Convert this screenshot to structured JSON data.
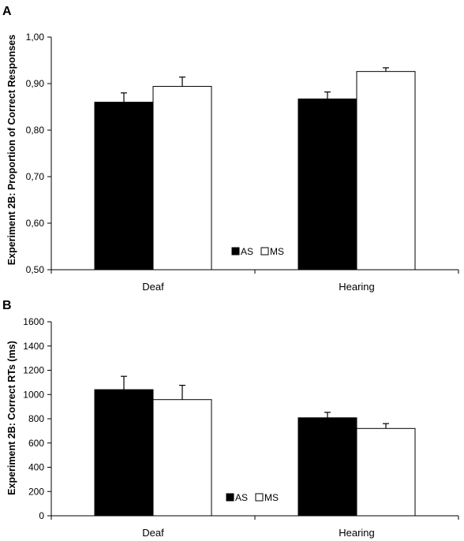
{
  "chart_data": [
    {
      "panel": "A",
      "type": "bar",
      "categories": [
        "Deaf",
        "Hearing"
      ],
      "series": [
        {
          "name": "AS",
          "color": "#000000",
          "values": [
            0.86,
            0.867
          ],
          "errors": [
            0.02,
            0.015
          ]
        },
        {
          "name": "MS",
          "color": "#ffffff",
          "values": [
            0.894,
            0.926
          ],
          "errors": [
            0.02,
            0.008
          ]
        }
      ],
      "ylabel": "Experiment 2B: Proportion of Correct Responses",
      "xlabel": "",
      "ylim": [
        0.5,
        1.0
      ],
      "yticks": [
        0.5,
        0.6,
        0.7,
        0.8,
        0.9,
        1.0
      ],
      "ytick_labels": [
        "0,50",
        "0,60",
        "0,70",
        "0,80",
        "0,90",
        "1,00"
      ],
      "legend": [
        "AS",
        "MS"
      ],
      "legend_position": "bottom-center",
      "grid": false
    },
    {
      "panel": "B",
      "type": "bar",
      "categories": [
        "Deaf",
        "Hearing"
      ],
      "series": [
        {
          "name": "AS",
          "color": "#000000",
          "values": [
            1040,
            808
          ],
          "errors": [
            110,
            45
          ]
        },
        {
          "name": "MS",
          "color": "#ffffff",
          "values": [
            958,
            720
          ],
          "errors": [
            118,
            40
          ]
        }
      ],
      "ylabel": "Experiment 2B: Correct RTs (ms)",
      "xlabel": "",
      "ylim": [
        0,
        1600
      ],
      "yticks": [
        0,
        200,
        400,
        600,
        800,
        1000,
        1200,
        1400,
        1600
      ],
      "ytick_labels": [
        "0",
        "200",
        "400",
        "600",
        "800",
        "1000",
        "1200",
        "1400",
        "1600"
      ],
      "legend": [
        "AS",
        "MS"
      ],
      "legend_position": "bottom-center",
      "grid": false
    }
  ]
}
